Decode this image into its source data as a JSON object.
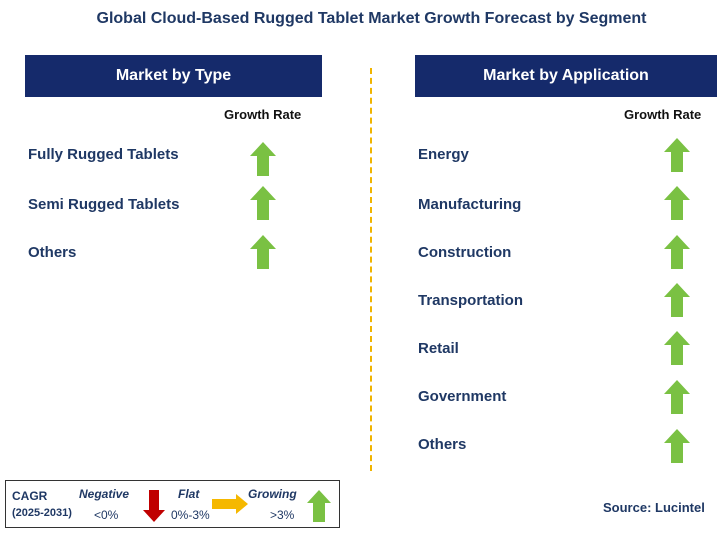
{
  "title": "Global Cloud-Based Rugged Tablet Market Growth Forecast by Segment",
  "left_panel": {
    "header": "Market by Type",
    "growth_rate_label": "Growth Rate",
    "items": [
      {
        "label": "Fully Rugged Tablets",
        "trend": "growing"
      },
      {
        "label": "Semi Rugged Tablets",
        "trend": "growing"
      },
      {
        "label": "Others",
        "trend": "growing"
      }
    ]
  },
  "right_panel": {
    "header": "Market by Application",
    "growth_rate_label": "Growth Rate",
    "items": [
      {
        "label": "Energy",
        "trend": "growing"
      },
      {
        "label": "Manufacturing",
        "trend": "growing"
      },
      {
        "label": "Construction",
        "trend": "growing"
      },
      {
        "label": "Transportation",
        "trend": "growing"
      },
      {
        "label": "Retail",
        "trend": "growing"
      },
      {
        "label": "Government",
        "trend": "growing"
      },
      {
        "label": "Others",
        "trend": "growing"
      }
    ]
  },
  "legend": {
    "cagr_label": "CAGR",
    "period": "(2025-2031)",
    "negative": {
      "label": "Negative",
      "range": "<0%",
      "icon": "down-arrow-icon",
      "color": "#c00000"
    },
    "flat": {
      "label": "Flat",
      "range": "0%-3%",
      "icon": "right-arrow-icon",
      "color": "#f5b800"
    },
    "growing": {
      "label": "Growing",
      "range": ">3%",
      "icon": "up-arrow-icon",
      "color": "#7ac143"
    }
  },
  "source": "Source: Lucintel",
  "colors": {
    "header_bg": "#152a6b",
    "text": "#1f3864",
    "divider": "#f0b400",
    "growing": "#7ac143"
  }
}
